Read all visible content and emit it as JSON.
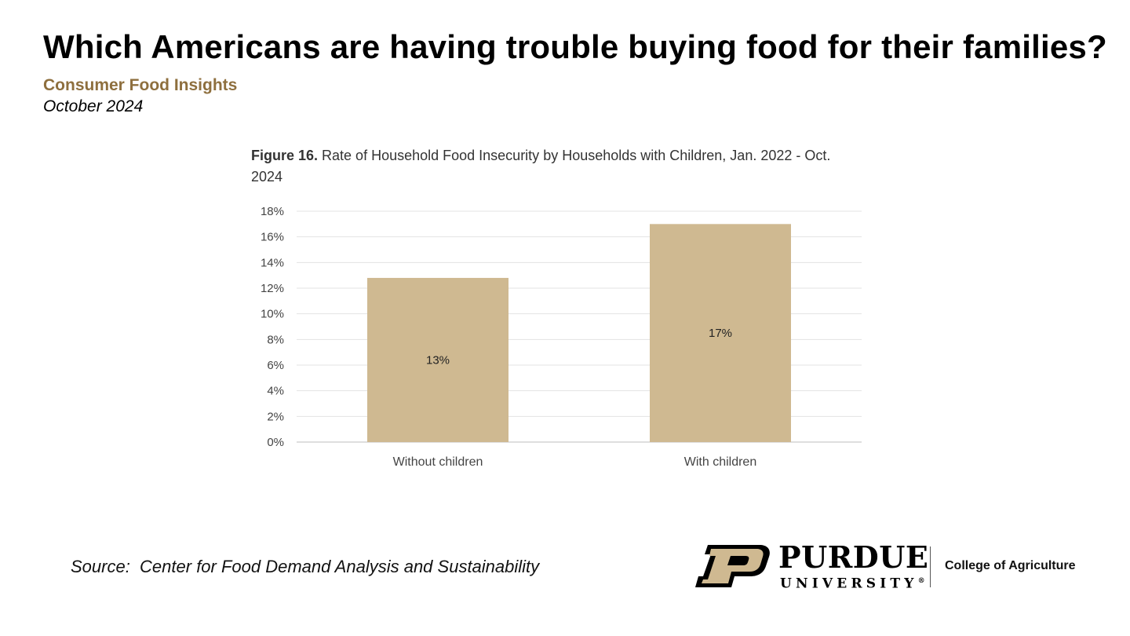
{
  "header": {
    "title": "Which Americans are having trouble buying food for their families?",
    "subtitle": "Consumer Food Insights",
    "date": "October 2024"
  },
  "figure": {
    "label": "Figure 16.",
    "caption": " Rate of Household Food Insecurity by Households with Children, Jan. 2022 - Oct. 2024"
  },
  "chart_data": {
    "type": "bar",
    "categories": [
      "Without children",
      "With children"
    ],
    "values": [
      12.8,
      17.0
    ],
    "data_labels": [
      "13%",
      "17%"
    ],
    "ylim": [
      0,
      18
    ],
    "yticks": [
      "0%",
      "2%",
      "4%",
      "6%",
      "8%",
      "10%",
      "12%",
      "14%",
      "16%",
      "18%"
    ],
    "ytick_values": [
      0,
      2,
      4,
      6,
      8,
      10,
      12,
      14,
      16,
      18
    ],
    "grid": true,
    "legend": "none",
    "bar_color": "#cfb991"
  },
  "footer": {
    "source": "Source:  Center for Food Demand Analysis and Sustainability"
  },
  "logo": {
    "wordmark": "PURDUE",
    "sub": "UNIVERSITY",
    "registered": "®",
    "college": "College of Agriculture",
    "gold": "#cfb991"
  }
}
